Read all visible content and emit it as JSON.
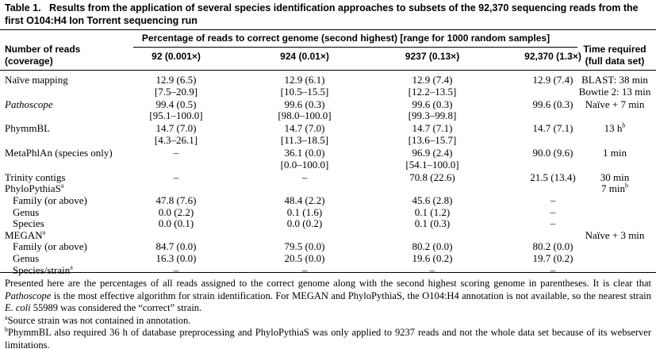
{
  "title": {
    "label": "Table 1.",
    "text": "Results from the application of several species identification approaches to subsets of the 92,370 sequencing reads from the first O104:H4 Ion Torrent sequencing run"
  },
  "header": {
    "row_label": [
      "Number of reads",
      "(coverage)"
    ],
    "span": "Percentage of reads to correct genome (second highest) [range for 1000 random samples]",
    "columns": [
      "92 (0.001×)",
      "924 (0.01×)",
      "9237 (0.13×)",
      "92,370 (1.3×)"
    ],
    "time": [
      "Time required",
      "(full data set)"
    ]
  },
  "table": {
    "rows": [
      {
        "label": "Naïve mapping",
        "cells": [
          [
            "12.9 (6.5)",
            "[7.5–20.9]"
          ],
          [
            "12.9 (6.1)",
            "[10.5–15.5]"
          ],
          [
            "12.9 (7.4)",
            "[12.2–13.5]"
          ],
          [
            "12.9 (7.4)"
          ],
          [
            "BLAST: 38 min",
            "Bowtie 2: 13 min"
          ]
        ]
      },
      {
        "label": "Pathoscope",
        "italic": true,
        "cells": [
          [
            "99.4 (0.5)",
            "[95.1–100.0]"
          ],
          [
            "99.6 (0.3)",
            "[98.0–100.0]"
          ],
          [
            "99.6 (0.3)",
            "[99.3–99.8]"
          ],
          [
            "99.6 (0.3)"
          ],
          [
            "Naïve + 7 min"
          ]
        ]
      },
      {
        "label": "PhymmBL",
        "cells": [
          [
            "14.7 (7.0)",
            "[4.3–26.1]"
          ],
          [
            "14.7 (7.0)",
            "[11.3–18.5]"
          ],
          [
            "14.7 (7.1)",
            "[13.6–15.7]"
          ],
          [
            "14.7 (7.1)"
          ],
          [
            {
              "text": "13 h",
              "sup": "b"
            }
          ]
        ]
      },
      {
        "label": "MetaPhlAn (species only)",
        "cells": [
          [
            "–"
          ],
          [
            "36.1 (0.0)",
            "[0.0–100.0]"
          ],
          [
            "96.9 (2.4)",
            "[54.1–100.0]"
          ],
          [
            "90.0 (9.6)"
          ],
          [
            "1 min"
          ]
        ]
      },
      {
        "label": "Trinity contigs",
        "cells": [
          [
            "–"
          ],
          [
            "–"
          ],
          [
            "70.8 (22.6)"
          ],
          [
            "21.5 (13.4)"
          ],
          [
            "30 min"
          ]
        ]
      },
      {
        "label": {
          "text": "PhyloPythiaS",
          "sup": "a"
        },
        "cells": [
          [],
          [],
          [],
          [],
          [
            {
              "text": "7 min",
              "sup": "b"
            }
          ]
        ]
      },
      {
        "label": "Family (or above)",
        "indent": true,
        "cells": [
          [
            "47.8 (7.6)"
          ],
          [
            "48.4 (2.2)"
          ],
          [
            "45.6 (2.8)"
          ],
          [
            "–"
          ],
          []
        ]
      },
      {
        "label": "Genus",
        "indent": true,
        "cells": [
          [
            "0.0 (2.2)"
          ],
          [
            "0.1 (1.6)"
          ],
          [
            "0.1 (1.2)"
          ],
          [
            "–"
          ],
          []
        ]
      },
      {
        "label": "Species",
        "indent": true,
        "cells": [
          [
            "0.0 (0.1)"
          ],
          [
            "0.0 (0.2)"
          ],
          [
            "0.1 (0.3)"
          ],
          [
            "–"
          ],
          []
        ]
      },
      {
        "label": {
          "text": "MEGAN",
          "sup": "a"
        },
        "cells": [
          [],
          [],
          [],
          [],
          [
            "Naïve + 3 min"
          ]
        ]
      },
      {
        "label": "Family (or above)",
        "indent": true,
        "cells": [
          [
            "84.7 (0.0)"
          ],
          [
            "79.5 (0.0)"
          ],
          [
            "80.2 (0.0)"
          ],
          [
            "80.2 (0.0)"
          ],
          []
        ]
      },
      {
        "label": "Genus",
        "indent": true,
        "cells": [
          [
            "16.3 (0.0)"
          ],
          [
            "20.5 (0.0)"
          ],
          [
            "19.6 (0.2)"
          ],
          [
            "19.7 (0.2)"
          ],
          []
        ]
      },
      {
        "label": {
          "text": "Species/strain",
          "sup": "a"
        },
        "indent": true,
        "cells": [
          [
            "–"
          ],
          [
            "–"
          ],
          [
            "–"
          ],
          [
            "–"
          ],
          []
        ]
      }
    ]
  },
  "notes": {
    "main": [
      "Presented here are the percentages of all reads assigned to the correct genome along with the second highest scoring genome in parentheses. It is clear that ",
      "Pathoscope",
      " is the most effective algorithm for strain identification. For MEGAN and PhyloPythiaS, the O104:H4 annotation is not available, so the nearest strain ",
      "E. coli",
      " 55989 was considered the “correct” strain."
    ],
    "a": {
      "sup": "a",
      "text": "Source strain was not contained in annotation."
    },
    "b": {
      "sup": "b",
      "text": "PhymmBL also required 36 h of database preprocessing and PhyloPythiaS was only applied to 9237 reads and not the whole data set because of its webserver limitations."
    }
  }
}
